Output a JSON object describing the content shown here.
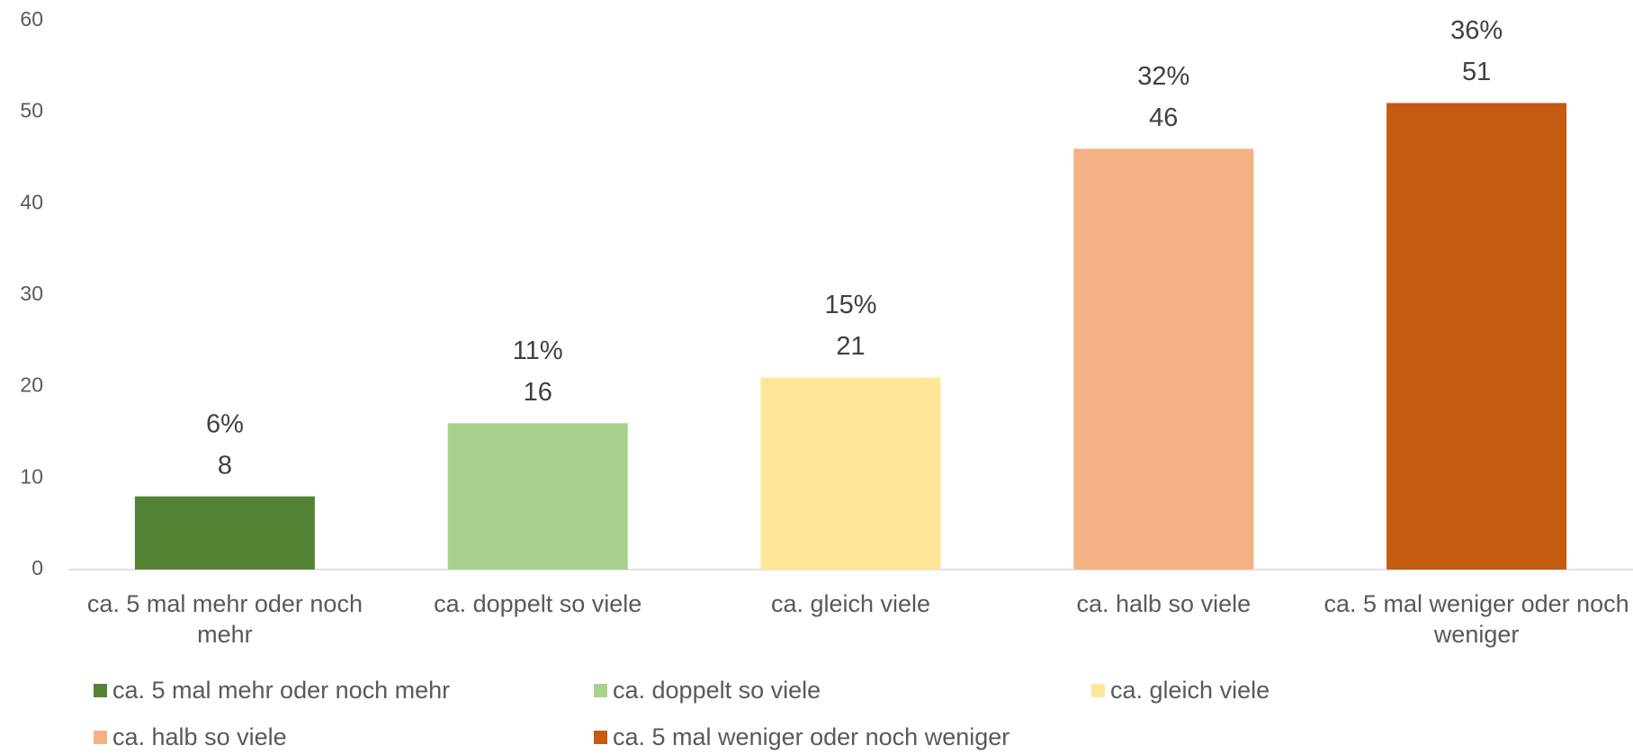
{
  "chart_data": {
    "type": "bar",
    "categories": [
      "ca. 5 mal mehr oder noch mehr",
      "ca. doppelt so viele",
      "ca. gleich viele",
      "ca. halb so viele",
      "ca. 5 mal weniger oder noch weniger"
    ],
    "values": [
      8,
      16,
      21,
      46,
      51
    ],
    "percent_labels": [
      "6%",
      "11%",
      "15%",
      "32%",
      "36%"
    ],
    "colors": [
      "#548235",
      "#a9d18e",
      "#ffe699",
      "#f4b183",
      "#c55a11"
    ],
    "ylim": [
      0,
      60
    ],
    "yticks": [
      0,
      10,
      20,
      30,
      40,
      50,
      60
    ],
    "grid": false
  }
}
